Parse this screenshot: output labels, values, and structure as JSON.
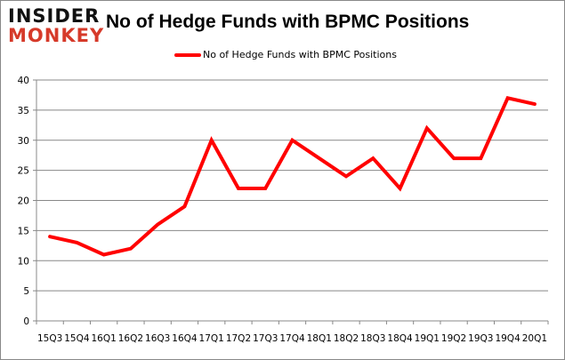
{
  "logo": {
    "line1": "INSIDER",
    "line2": "MONKEY",
    "colors": [
      "#111111",
      "#d63a2a"
    ]
  },
  "chart_data": {
    "type": "line",
    "title": "No of Hedge Funds with BPMC Positions",
    "categories": [
      "15Q3",
      "15Q4",
      "16Q1",
      "16Q2",
      "16Q3",
      "16Q4",
      "17Q1",
      "17Q2",
      "17Q3",
      "17Q4",
      "18Q1",
      "18Q2",
      "18Q3",
      "18Q4",
      "19Q1",
      "19Q2",
      "19Q3",
      "19Q4",
      "20Q1"
    ],
    "series": [
      {
        "name": "No of Hedge Funds with BPMC Positions",
        "color": "#ff0000",
        "values": [
          14,
          13,
          11,
          12,
          16,
          19,
          30,
          22,
          22,
          30,
          27,
          24,
          27,
          22,
          32,
          27,
          27,
          37,
          36
        ]
      }
    ],
    "ylim": [
      0,
      40
    ],
    "yticks": [
      0,
      5,
      10,
      15,
      20,
      25,
      30,
      35,
      40
    ],
    "grid": true,
    "legend": "top-center",
    "xlabel": "",
    "ylabel": ""
  }
}
